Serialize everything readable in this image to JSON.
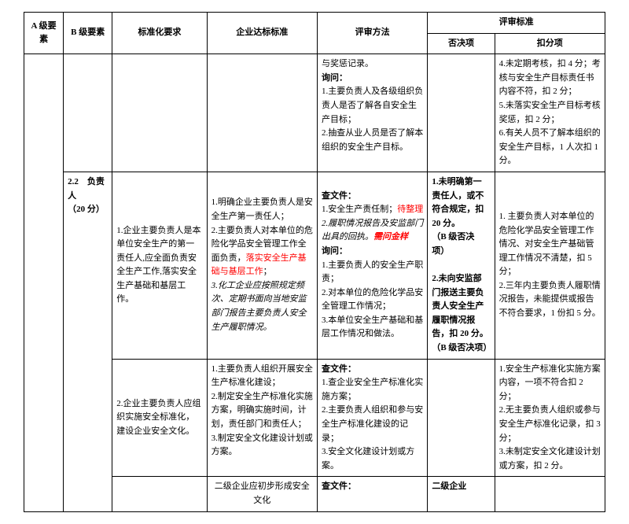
{
  "headers": {
    "colA": "A 级要素",
    "colB": "B 级要素",
    "req": "标准化要求",
    "std": "企业达标标准",
    "method": "评审方法",
    "criteria": "评审标准",
    "veto": "否决项",
    "deduct": "扣分项"
  },
  "row1": {
    "method_l1": "与奖惩记录。",
    "method_l2": "询问：",
    "method_l3": "1.主要负责人及各级组织负责人是否了解各自安全生产目标；",
    "method_l4": "2.抽查从业人员是否了解本组织的安全生产目标。",
    "deduct_l1": "4.未定期考核，扣 4 分；考核与安全生产目标责任书内容不符，扣 2 分；",
    "deduct_l2": "5.未落实安全生产目标考核奖惩，扣 2 分；",
    "deduct_l3": "6.有关人员不了解本组织的安全生产目标，1 人次扣 1 分。"
  },
  "row2": {
    "colB_l1": "2.2　负责人",
    "colB_l2": "（20 分）",
    "req": "1.企业主要负责人是本单位安全生产的第一责任人,应全面负责安全生产工作,落实安全生产基础和基层工作。",
    "std_l1": "1.明确企业主要负责人是安全生产第一责任人；",
    "std_l2a": "2.主要负责人对本单位的危险化学品安全管理工作全面负责，",
    "std_l2b": "落实安全生产基础与基层工作",
    "std_l2c": "；",
    "std_l3": "3.化工企业应按照规定频次、定期书面向当地安监部门报告主要负责人安全生产履职情况。",
    "method_l1": "查文件：",
    "method_l2a": "1.安全生产责任制；",
    "method_l2b": "待整理",
    "method_l3a": "2.履职情况报告及安监部门出具的回执。",
    "method_l3b": "需问金样",
    "method_l4": "询问：",
    "method_l5": "1.主要负责人的安全生产职责；",
    "method_l6": "2.对本单位的危险化学品安全管理工作情况；",
    "method_l7": "3.本单位安全生产基础和基层工作情况和做法。",
    "veto_l1": "1.未明确第一责任人，或不符合规定，扣20 分。",
    "veto_l2": "（B 级否决项）",
    "veto_l3": "2.未向安监部门报送主要负责人安全生产履职情况报告，扣 20 分。",
    "veto_l4": "（B 级否决项）",
    "deduct_l1": "1. 主要负责人对本单位的危险化学品安全管理工作情况、对安全生产基础管理工作情况不清楚，扣 5 分；",
    "deduct_l2": "2.三年内主要负责人履职情况报告，未能提供或报告不符合要求，1 份扣 5 分。"
  },
  "row3": {
    "req": "2.企业主要负责人应组织实施安全标准化，建设企业安全文化。",
    "std_l1": "1.主要负责人组织开展安全生产标准化建设；",
    "std_l2": "2.制定安全生产标准化实施方案，明确实施时间，计划，责任部门和责任人；",
    "std_l3": "3.制定安全文化建设计划或方案。",
    "method_l1": "查文件：",
    "method_l2": "1.查企业安全生产标准化实施方案；",
    "method_l3": "2.主要负责人组织和参与安全生产标准化建设的记录；",
    "method_l4": "3.安全文化建设计划或方案。",
    "deduct_l1": "1.安全生产标准化实施方案内容，一项不符合扣 2 分；",
    "deduct_l2": "2.无主要负责人组织或参与安全生产标准化记录，扣 3 分；",
    "deduct_l3": "3.未制定安全文化建设计划或方案，扣 2 分。"
  },
  "row4": {
    "std": "二级企业应初步形成安全文化",
    "method": "查文件：",
    "veto": "二级企业"
  }
}
